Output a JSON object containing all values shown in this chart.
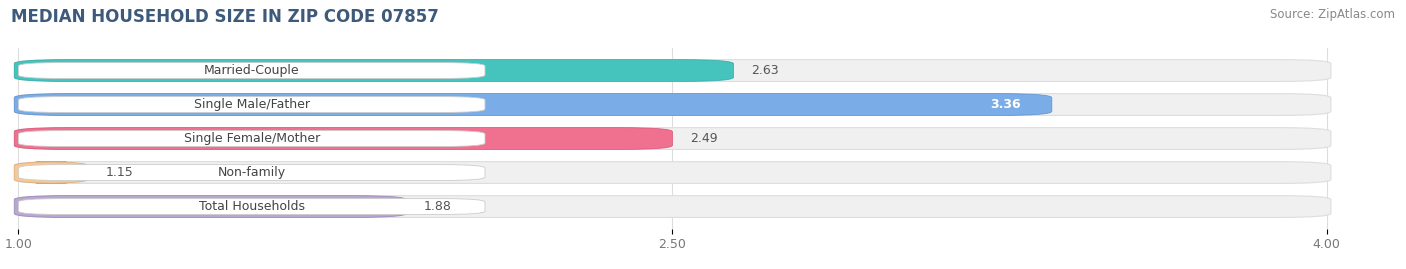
{
  "title": "MEDIAN HOUSEHOLD SIZE IN ZIP CODE 07857",
  "source": "Source: ZipAtlas.com",
  "categories": [
    "Married-Couple",
    "Single Male/Father",
    "Single Female/Mother",
    "Non-family",
    "Total Households"
  ],
  "values": [
    2.63,
    3.36,
    2.49,
    1.15,
    1.88
  ],
  "bar_colors": [
    "#45c4be",
    "#7aade8",
    "#f07090",
    "#f5c896",
    "#b8a8d0"
  ],
  "bar_edge_colors": [
    "#35a8a2",
    "#5a8dc8",
    "#d85070",
    "#d8a870",
    "#9880b8"
  ],
  "label_bg_color": "#ffffff",
  "xlim_min": 1.0,
  "xlim_max": 4.0,
  "xlim_display_max": 4.15,
  "xticks": [
    1.0,
    2.5,
    4.0
  ],
  "xticklabels": [
    "1.00",
    "2.50",
    "4.00"
  ],
  "title_fontsize": 12,
  "source_fontsize": 8.5,
  "label_fontsize": 9,
  "value_fontsize": 9,
  "tick_fontsize": 9,
  "bar_height": 0.62,
  "background_color": "#ffffff",
  "grid_color": "#dddddd",
  "value_label_white": [
    false,
    true,
    false,
    false,
    false
  ]
}
